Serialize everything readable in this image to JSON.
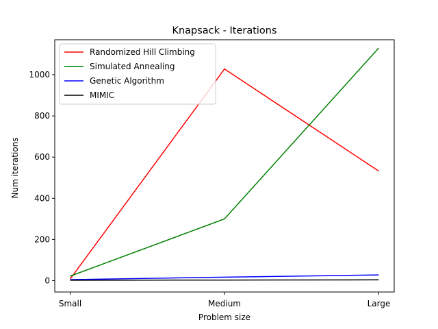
{
  "chart_data": {
    "type": "line",
    "title": "Knapsack - Iterations",
    "xlabel": "Problem size",
    "ylabel": "Num iterations",
    "categories": [
      "Small",
      "Medium",
      "Large"
    ],
    "ylim": [
      -55,
      1170
    ],
    "yticks": [
      0,
      200,
      400,
      600,
      800,
      1000
    ],
    "grid": false,
    "legend_position": "upper-left",
    "series": [
      {
        "name": "Randomized Hill Climbing",
        "color": "#ff0000",
        "values": [
          8,
          1028,
          532
        ]
      },
      {
        "name": "Simulated Annealing",
        "color": "#008000",
        "values": [
          22,
          300,
          1130
        ]
      },
      {
        "name": "Genetic Algorithm",
        "color": "#0000ff",
        "values": [
          5,
          17,
          28
        ]
      },
      {
        "name": "MIMIC",
        "color": "#000000",
        "values": [
          2,
          3,
          4
        ]
      }
    ]
  }
}
